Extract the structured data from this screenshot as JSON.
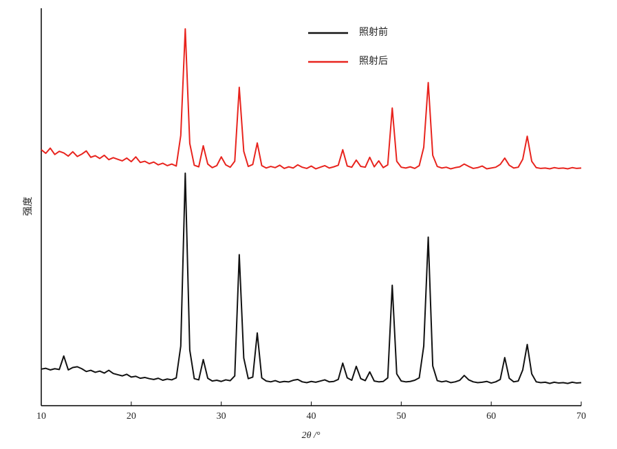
{
  "chart_data": {
    "type": "line",
    "xlabel": "2θ /°",
    "ylabel": "强度",
    "xlim": [
      10,
      70
    ],
    "xticks": [
      10,
      20,
      30,
      40,
      50,
      60,
      70
    ],
    "ylim": [
      0,
      100
    ],
    "legend": "top-center",
    "x": [
      10,
      10.5,
      11,
      11.5,
      12,
      12.5,
      13,
      13.5,
      14,
      14.5,
      15,
      15.5,
      16,
      16.5,
      17,
      17.5,
      18,
      18.5,
      19,
      19.5,
      20,
      20.5,
      21,
      21.5,
      22,
      22.5,
      23,
      23.5,
      24,
      24.5,
      25,
      25.5,
      26,
      26.5,
      27,
      27.5,
      28,
      28.5,
      29,
      29.5,
      30,
      30.5,
      31,
      31.5,
      32,
      32.5,
      33,
      33.5,
      34,
      34.5,
      35,
      35.5,
      36,
      36.5,
      37,
      37.5,
      38,
      38.5,
      39,
      39.5,
      40,
      40.5,
      41,
      41.5,
      42,
      42.5,
      43,
      43.5,
      44,
      44.5,
      45,
      45.5,
      46,
      46.5,
      47,
      47.5,
      48,
      48.5,
      49,
      49.5,
      50,
      50.5,
      51,
      51.5,
      52,
      52.5,
      53,
      53.5,
      54,
      54.5,
      55,
      55.5,
      56,
      56.5,
      57,
      57.5,
      58,
      58.5,
      59,
      59.5,
      60,
      60.5,
      61,
      61.5,
      62,
      62.5,
      63,
      63.5,
      64,
      64.5,
      65,
      65.5,
      66,
      66.5,
      67,
      67.5,
      68,
      68.5,
      69,
      69.5,
      70
    ],
    "series": [
      {
        "name": "照射前",
        "color": "#111111",
        "values": [
          9.2,
          9.4,
          9.0,
          9.3,
          9.1,
          12.5,
          9.0,
          9.6,
          9.8,
          9.3,
          8.6,
          8.9,
          8.4,
          8.7,
          8.2,
          8.9,
          8.1,
          7.8,
          7.5,
          7.9,
          7.2,
          7.4,
          6.9,
          7.1,
          6.8,
          6.6,
          6.9,
          6.4,
          6.7,
          6.5,
          7.0,
          15,
          58.5,
          14,
          6.8,
          6.5,
          11.6,
          6.9,
          6.2,
          6.4,
          6.1,
          6.5,
          6.3,
          7.5,
          38,
          12,
          6.8,
          7.2,
          18.3,
          7.0,
          6.2,
          6.0,
          6.3,
          5.9,
          6.1,
          6.0,
          6.4,
          6.6,
          6.0,
          5.8,
          6.1,
          5.9,
          6.2,
          6.5,
          6.0,
          6.1,
          6.6,
          10.7,
          7.0,
          6.4,
          9.9,
          6.8,
          6.3,
          8.5,
          6.2,
          6.0,
          6.1,
          7.0,
          30.3,
          8.0,
          6.2,
          6.0,
          6.1,
          6.4,
          7.0,
          15,
          42.4,
          10,
          6.3,
          6.0,
          6.2,
          5.8,
          6.0,
          6.4,
          7.6,
          6.5,
          6.0,
          5.8,
          5.9,
          6.1,
          5.7,
          6.0,
          6.6,
          12.1,
          6.9,
          6.0,
          6.2,
          9,
          15.4,
          8,
          6.0,
          5.8,
          5.9,
          5.6,
          5.9,
          5.7,
          5.8,
          5.6,
          5.9,
          5.7,
          5.8
        ]
      },
      {
        "name": "照射后",
        "color": "#e8231d",
        "values": [
          64.4,
          63.5,
          64.8,
          63.2,
          64.0,
          63.6,
          62.8,
          63.9,
          62.7,
          63.3,
          64.1,
          62.5,
          62.9,
          62.2,
          63.0,
          61.9,
          62.4,
          62.0,
          61.6,
          62.3,
          61.4,
          62.6,
          61.2,
          61.5,
          60.9,
          61.3,
          60.6,
          61.0,
          60.4,
          60.8,
          60.3,
          68,
          94.8,
          66,
          60.5,
          60.1,
          65.4,
          60.8,
          59.9,
          60.4,
          62.6,
          60.6,
          60.0,
          61.5,
          80.1,
          64,
          60.2,
          60.7,
          66.1,
          60.4,
          59.8,
          60.2,
          59.9,
          60.5,
          59.7,
          60.1,
          59.8,
          60.6,
          60.0,
          59.7,
          60.3,
          59.6,
          60.0,
          60.4,
          59.8,
          60.1,
          60.5,
          64.4,
          60.3,
          60.0,
          61.8,
          60.2,
          60.0,
          62.5,
          60.1,
          61.6,
          59.9,
          60.6,
          74.9,
          61.5,
          60.0,
          59.8,
          60.1,
          59.7,
          60.4,
          65,
          81.3,
          63,
          60.2,
          59.8,
          60.0,
          59.6,
          59.9,
          60.1,
          60.8,
          60.2,
          59.7,
          59.9,
          60.3,
          59.6,
          59.8,
          60.0,
          60.7,
          62.3,
          60.5,
          59.8,
          60.0,
          62,
          67.8,
          61.5,
          59.9,
          59.7,
          59.8,
          59.6,
          59.9,
          59.7,
          59.8,
          59.6,
          59.9,
          59.7,
          59.8
        ]
      }
    ]
  }
}
